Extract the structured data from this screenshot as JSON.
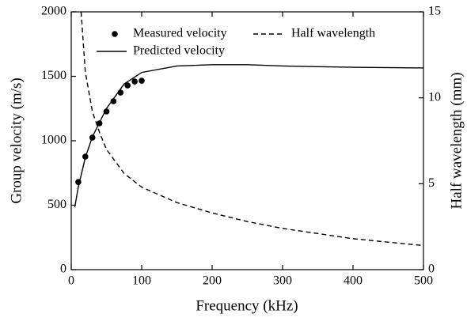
{
  "chart_data": {
    "type": "line",
    "x_label": "Frequency (kHz)",
    "y_label": "Group velocity (m/s)",
    "y2_label": "Half wavelength (mm)",
    "xlim": [
      0,
      500
    ],
    "xticks": [
      0,
      100,
      200,
      300,
      400,
      500
    ],
    "ylim": [
      0,
      2000
    ],
    "yticks": [
      0,
      500,
      1000,
      1500,
      2000
    ],
    "y2lim": [
      0,
      15
    ],
    "y2ticks": [
      0,
      5,
      10,
      15
    ],
    "series": [
      {
        "name": "Measured velocity",
        "style": "marker",
        "color": "#000000",
        "x": [
          10,
          20,
          30,
          40,
          50,
          60,
          70,
          80,
          90,
          100
        ],
        "values": [
          680,
          877,
          1025,
          1135,
          1227,
          1307,
          1374,
          1429,
          1460,
          1466
        ]
      },
      {
        "name": "Half wavelength",
        "style": "dashed",
        "color": "#000000",
        "axis": "y2",
        "x": [
          14,
          20,
          30,
          40,
          50,
          75,
          100,
          150,
          200,
          250,
          300,
          350,
          400,
          450,
          500
        ],
        "values": [
          15,
          11.5,
          9.2,
          8.0,
          7.0,
          5.6,
          4.8,
          3.9,
          3.3,
          2.8,
          2.4,
          2.1,
          1.8,
          1.6,
          1.4
        ]
      },
      {
        "name": "Predicted velocity",
        "style": "solid",
        "color": "#000000",
        "x": [
          5,
          10,
          20,
          30,
          50,
          75,
          100,
          150,
          200,
          250,
          300,
          400,
          500
        ],
        "values": [
          485,
          640,
          870,
          1030,
          1250,
          1440,
          1530,
          1580,
          1590,
          1590,
          1580,
          1570,
          1565
        ]
      }
    ]
  }
}
